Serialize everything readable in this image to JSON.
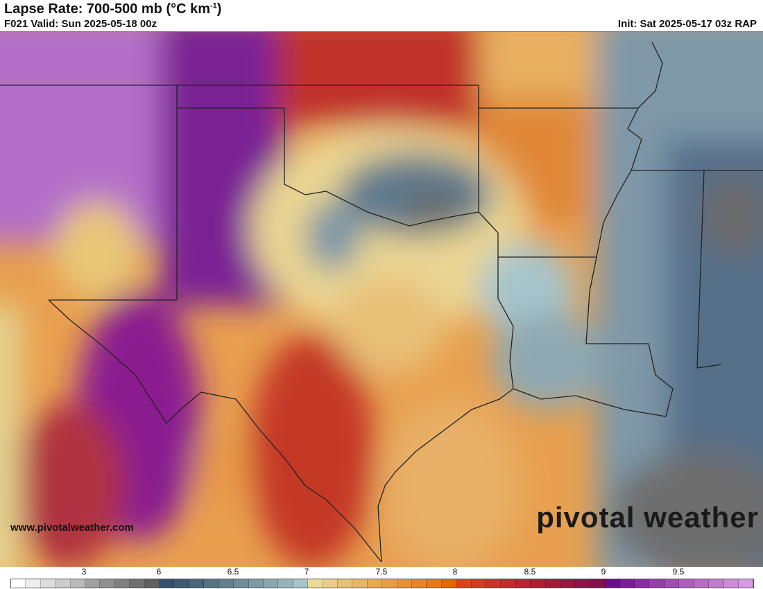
{
  "header": {
    "title_main": "Lapse Rate: 700-500 mb (°C km",
    "title_sup": "-1",
    "title_close": ")",
    "valid": "F021 Valid: Sun 2025-05-18 00z",
    "init": "Init: Sat 2025-05-17 03z RAP"
  },
  "watermark": {
    "url": "www.pivotalweather.com",
    "brand": "pivotal weather"
  },
  "colorbar": {
    "ticks": [
      "3",
      "6",
      "6.5",
      "7",
      "7.5",
      "8",
      "8.5",
      "9",
      "9.5"
    ],
    "colors": [
      "#ffffff",
      "#eeeeee",
      "#dddddd",
      "#cccccc",
      "#bbbbbb",
      "#a0a0a0",
      "#909090",
      "#808080",
      "#707070",
      "#606060",
      "#34506a",
      "#3e5a72",
      "#4a667c",
      "#567386",
      "#628090",
      "#6e8c9a",
      "#7c99a4",
      "#89a6ae",
      "#97b3b8",
      "#a6c5cc",
      "#e8dc98",
      "#e8cc88",
      "#e8c078",
      "#e8b468",
      "#e8a858",
      "#e89c48",
      "#e89038",
      "#e88428",
      "#e87818",
      "#e06a00",
      "#dc4418",
      "#d43c20",
      "#cc3428",
      "#c42c2c",
      "#b82430",
      "#ac2034",
      "#a01c3c",
      "#941840",
      "#8c1448",
      "#84104c",
      "#6c0c8c",
      "#7c1c98",
      "#8c2ca4",
      "#983cac",
      "#a04cb4",
      "#b05cbc",
      "#b86cc4",
      "#c07ccc",
      "#cc8cd8",
      "#d898e4"
    ]
  }
}
